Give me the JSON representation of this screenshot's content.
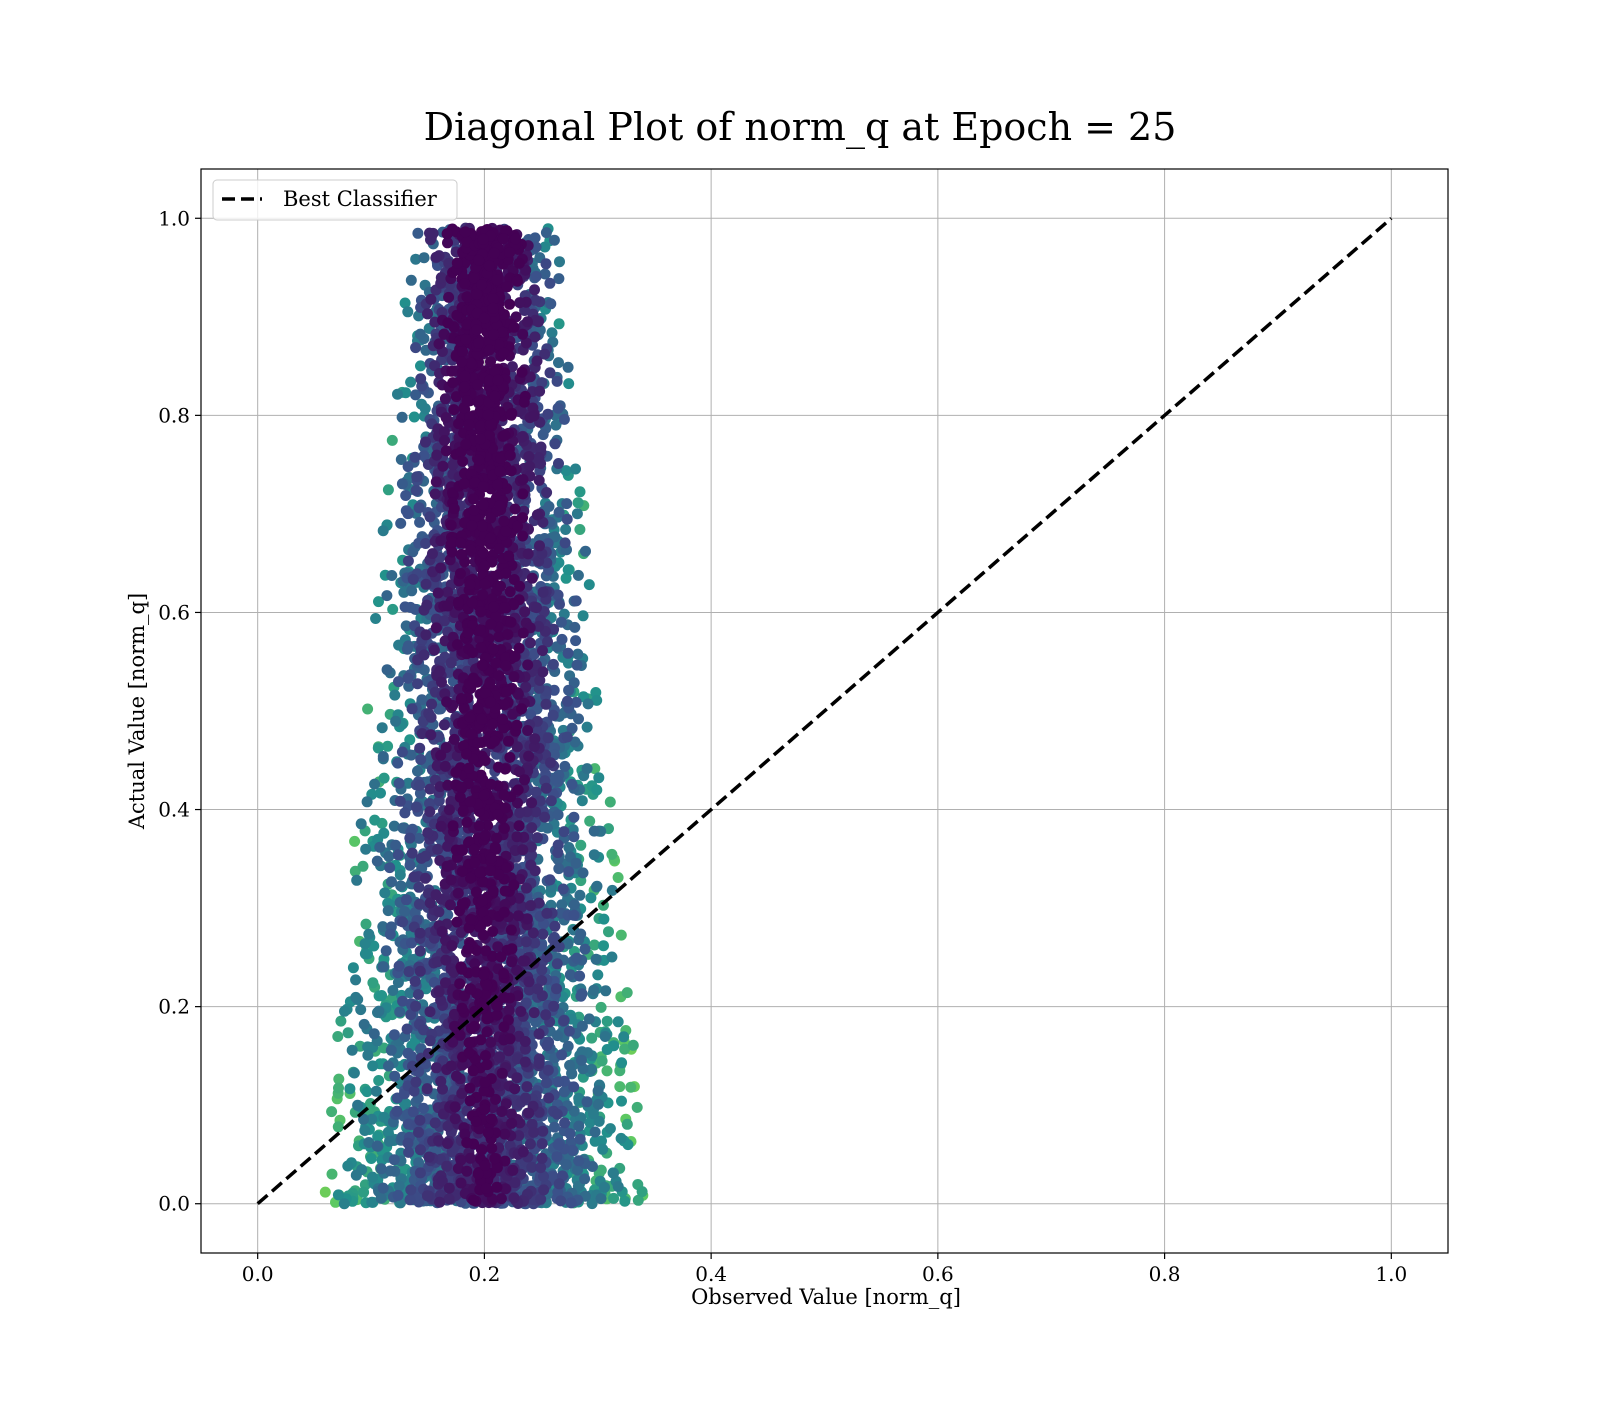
{
  "chart_data": {
    "type": "scatter",
    "title": "Diagonal Plot of norm_q at Epoch = 25",
    "xlabel": "Observed Value [norm_q]",
    "ylabel": "Actual Value [norm_q]",
    "xlim": [
      -0.05,
      1.05
    ],
    "ylim": [
      -0.05,
      1.05
    ],
    "xticks": [
      "0.0",
      "0.2",
      "0.4",
      "0.6",
      "0.8",
      "1.0"
    ],
    "yticks": [
      "0.0",
      "0.2",
      "0.4",
      "0.6",
      "0.8",
      "1.0"
    ],
    "xtick_values": [
      0.0,
      0.2,
      0.4,
      0.6,
      0.8,
      1.0
    ],
    "ytick_values": [
      0.0,
      0.2,
      0.4,
      0.6,
      0.8,
      1.0
    ],
    "grid": true,
    "legend": {
      "placement": "top-left",
      "entries": [
        "Best Classifier"
      ]
    },
    "reference_line": {
      "name": "Best Classifier",
      "x": [
        0.0,
        1.0
      ],
      "y": [
        0.0,
        1.0
      ],
      "style": "dashed",
      "color": "#000000"
    },
    "scatter": {
      "colormap": "viridis",
      "color_stops": [
        "#440154",
        "#3b528b",
        "#21918c",
        "#5ec962",
        "#b5de2b"
      ],
      "x_center": 0.2,
      "x_spread_min": 0.065,
      "x_spread_max": 0.145,
      "y_range": [
        0.0,
        0.99
      ],
      "approx_point_count": 6000
    }
  }
}
